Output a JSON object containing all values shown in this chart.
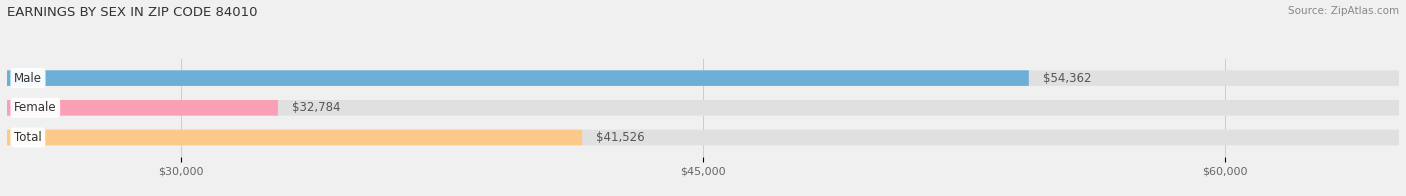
{
  "title": "EARNINGS BY SEX IN ZIP CODE 84010",
  "source": "Source: ZipAtlas.com",
  "categories": [
    "Male",
    "Female",
    "Total"
  ],
  "values": [
    54362,
    32784,
    41526
  ],
  "bar_colors": [
    "#6baed6",
    "#fa9fb5",
    "#fcc98a"
  ],
  "bar_labels": [
    "$54,362",
    "$32,784",
    "$41,526"
  ],
  "xmin": 25000,
  "xmax": 65000,
  "xticks": [
    30000,
    45000,
    60000
  ],
  "xtick_labels": [
    "$30,000",
    "$45,000",
    "$60,000"
  ],
  "background_color": "#f0f0f0",
  "bar_bg_color": "#e0e0e0",
  "title_fontsize": 9.5,
  "source_fontsize": 7.5,
  "label_fontsize": 8.5,
  "tick_fontsize": 8,
  "bar_height": 0.52
}
